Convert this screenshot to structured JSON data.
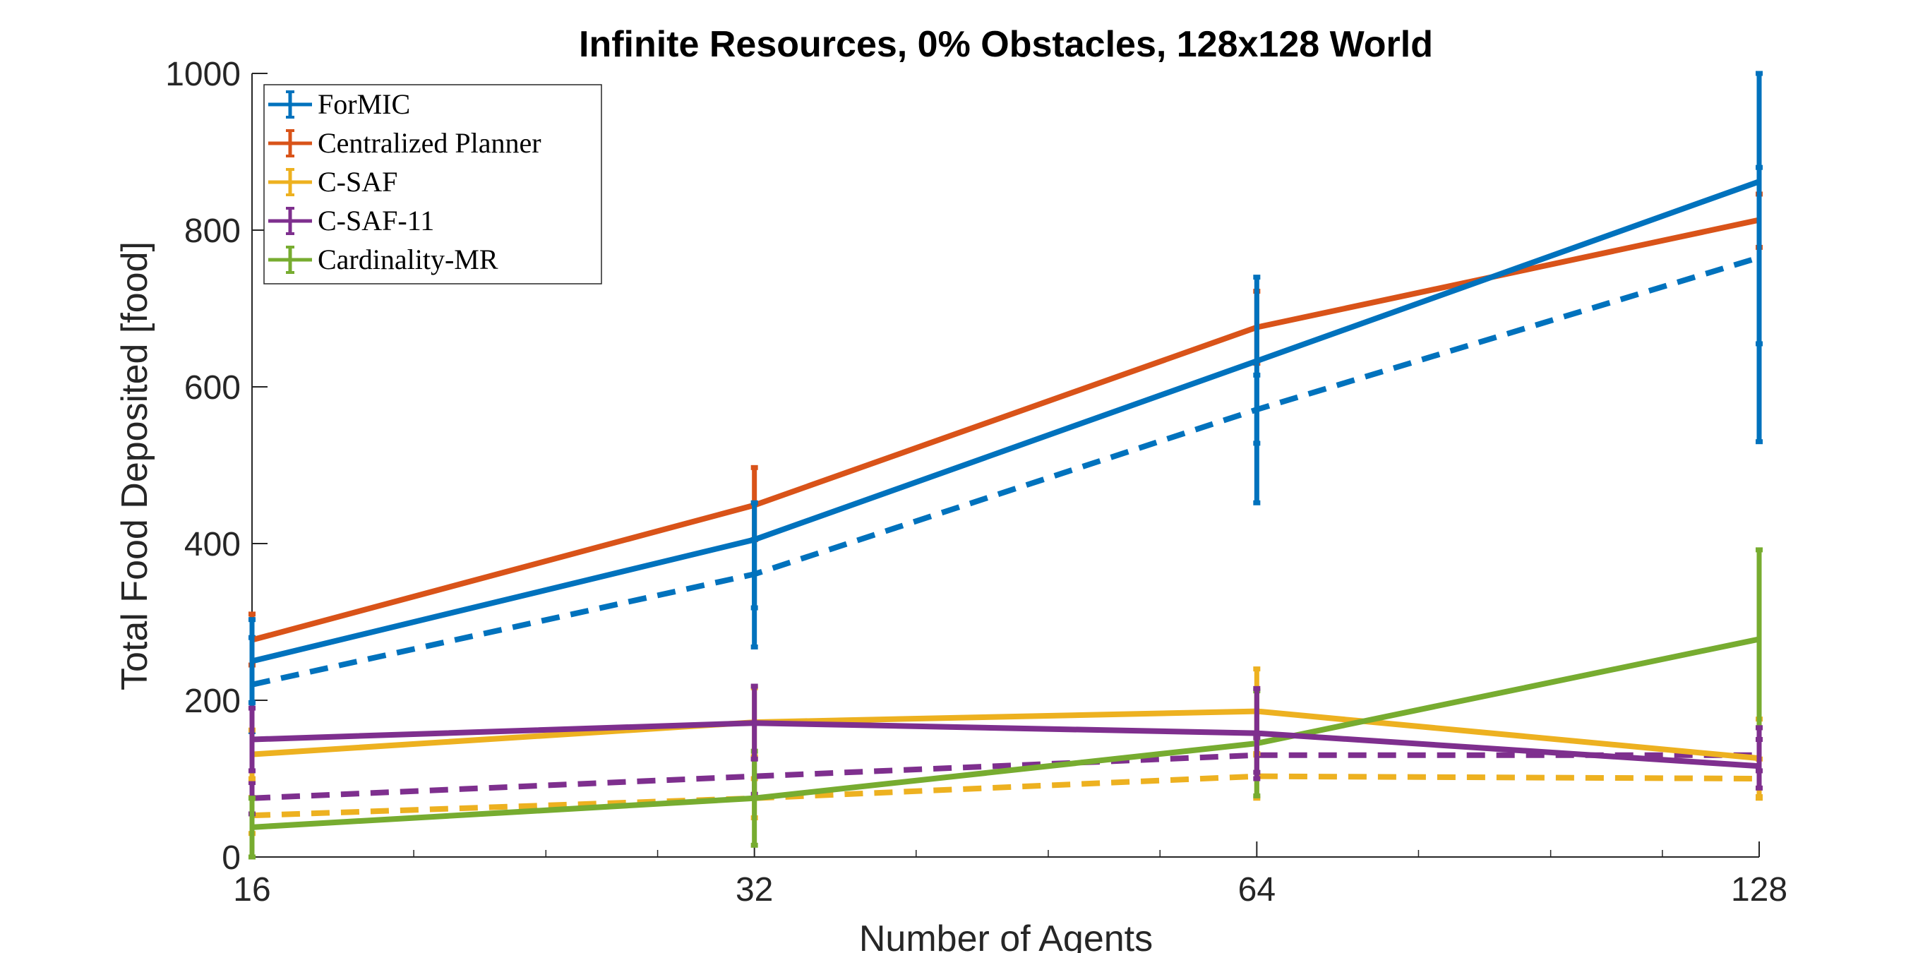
{
  "chart_data": {
    "type": "line",
    "title": "Infinite Resources, 0% Obstacles, 128x128 World",
    "xlabel": "Number of Agents",
    "ylabel": "Total Food Deposited [food]",
    "x_scale": "log2",
    "x": [
      16,
      32,
      64,
      128
    ],
    "x_tick_labels": [
      "16",
      "32",
      "64",
      "128"
    ],
    "ylim": [
      0,
      1000
    ],
    "y_ticks": [
      0,
      200,
      400,
      600,
      800,
      1000
    ],
    "y_tick_labels": [
      "0",
      "200",
      "400",
      "600",
      "800",
      "1000"
    ],
    "grid": false,
    "legend_placement": "top-left",
    "series": [
      {
        "name": "ForMIC",
        "color": "#0072BD",
        "style": "solid",
        "values": [
          250,
          405,
          633,
          862
        ],
        "error": [
          [
            197,
            303
          ],
          [
            268,
            452
          ],
          [
            452,
            740
          ],
          [
            530,
            1000
          ]
        ]
      },
      {
        "name": "Centralized Planner",
        "color": "#D95319",
        "style": "solid",
        "values": [
          277,
          449,
          676,
          813
        ],
        "error": [
          [
            245,
            310
          ],
          [
            405,
            497
          ],
          [
            630,
            722
          ],
          [
            778,
            846
          ]
        ]
      },
      {
        "name": "C-SAF",
        "color": "#EDB120",
        "style": "solid",
        "values": [
          131,
          172,
          186,
          126
        ],
        "error": [
          [
            100,
            162
          ],
          [
            128,
            216
          ],
          [
            132,
            240
          ],
          [
            77,
            176
          ]
        ]
      },
      {
        "name": "C-SAF-11",
        "color": "#7E2F8E",
        "style": "solid",
        "values": [
          150,
          171,
          158,
          116
        ],
        "error": [
          [
            110,
            190
          ],
          [
            125,
            218
          ],
          [
            100,
            215
          ],
          [
            88,
            165
          ]
        ]
      },
      {
        "name": "Cardinality-MR",
        "color": "#77AC30",
        "style": "solid",
        "values": [
          38,
          75,
          145,
          278
        ],
        "error": [
          [
            0,
            75
          ],
          [
            15,
            135
          ],
          [
            78,
            212
          ],
          [
            165,
            392
          ]
        ]
      },
      {
        "color": "#0072BD",
        "style": "dashed",
        "values": [
          220,
          361,
          571,
          765
        ],
        "error": [
          [
            160,
            280
          ],
          [
            318,
            405
          ],
          [
            528,
            615
          ],
          [
            655,
            880
          ]
        ]
      },
      {
        "color": "#EDB120",
        "style": "dashed",
        "values": [
          53,
          75,
          103,
          100
        ],
        "error": [
          [
            30,
            76
          ],
          [
            50,
            100
          ],
          [
            75,
            130
          ],
          [
            75,
            125
          ]
        ]
      },
      {
        "color": "#7E2F8E",
        "style": "dashed",
        "values": [
          75,
          103,
          130,
          130
        ],
        "error": [
          [
            55,
            95
          ],
          [
            80,
            126
          ],
          [
            108,
            152
          ],
          [
            110,
            150
          ]
        ]
      }
    ]
  }
}
